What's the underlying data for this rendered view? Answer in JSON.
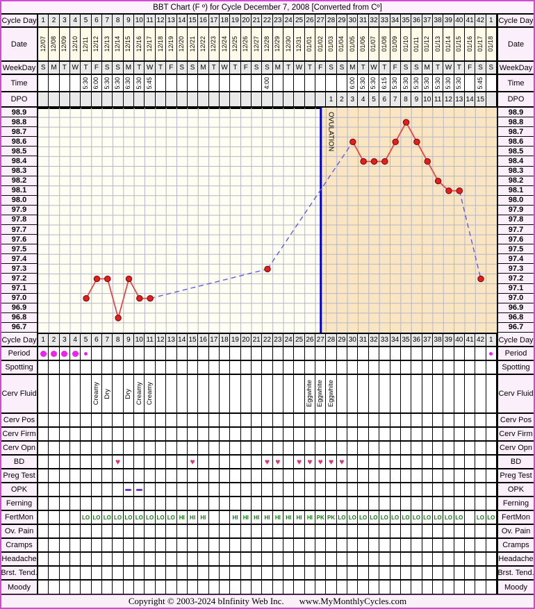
{
  "title": "BBT Chart (F º) for Cycle December 7, 2008 [Converted from Cº]",
  "ovulation_label": "OVULATION",
  "header_rows": {
    "cycle_day": "Cycle Day",
    "date": "Date",
    "weekday": "WeekDay",
    "time": "Time",
    "dpo": "DPO"
  },
  "days": {
    "cycle_days": [
      "1",
      "2",
      "3",
      "4",
      "5",
      "6",
      "7",
      "8",
      "9",
      "10",
      "11",
      "12",
      "13",
      "14",
      "15",
      "16",
      "17",
      "18",
      "19",
      "20",
      "21",
      "22",
      "23",
      "24",
      "25",
      "26",
      "27",
      "28",
      "29",
      "30",
      "31",
      "32",
      "33",
      "34",
      "35",
      "36",
      "37",
      "38",
      "39",
      "40",
      "41",
      "42",
      "1"
    ],
    "dates": [
      "12/07",
      "12/08",
      "12/09",
      "12/10",
      "12/11",
      "12/12",
      "12/13",
      "12/14",
      "12/15",
      "12/16",
      "12/17",
      "12/18",
      "12/19",
      "12/20",
      "12/21",
      "12/22",
      "12/23",
      "12/24",
      "12/25",
      "12/26",
      "12/27",
      "12/28",
      "12/29",
      "12/30",
      "12/31",
      "01/01",
      "01/02",
      "01/03",
      "01/04",
      "01/05",
      "01/06",
      "01/07",
      "01/08",
      "01/09",
      "01/10",
      "01/11",
      "01/12",
      "01/13",
      "01/14",
      "01/15",
      "01/16",
      "01/17",
      "01/18"
    ],
    "weekdays": [
      "S",
      "M",
      "T",
      "W",
      "T",
      "F",
      "S",
      "S",
      "M",
      "T",
      "W",
      "T",
      "F",
      "S",
      "S",
      "M",
      "T",
      "W",
      "T",
      "F",
      "S",
      "S",
      "M",
      "T",
      "W",
      "T",
      "F",
      "S",
      "S",
      "M",
      "T",
      "W",
      "T",
      "F",
      "S",
      "S",
      "M",
      "T",
      "W",
      "T",
      "F",
      "S",
      "S"
    ],
    "times": [
      "",
      "",
      "",
      "",
      "5:30",
      "6:00",
      "5:30",
      "5:30",
      "6:30",
      "5:30",
      "5:45",
      "",
      "",
      "",
      "",
      "",
      "",
      "",
      "",
      "",
      "",
      "4:00",
      "",
      "",
      "",
      "",
      "",
      "",
      "",
      "6:00",
      "5:30",
      "5:30",
      "6:15",
      "5:30",
      "5:30",
      "5:30",
      "5:30",
      "5:30",
      "5:30",
      "5:30",
      "",
      "5:45",
      ""
    ],
    "dpo": [
      "",
      "",
      "",
      "",
      "",
      "",
      "",
      "",
      "",
      "",
      "",
      "",
      "",
      "",
      "",
      "",
      "",
      "",
      "",
      "",
      "",
      "",
      "",
      "",
      "",
      "",
      "",
      "1",
      "2",
      "3",
      "4",
      "5",
      "6",
      "7",
      "8",
      "9",
      "10",
      "11",
      "12",
      "13",
      "14",
      "15",
      ""
    ]
  },
  "chart_data": {
    "type": "line",
    "title": "BBT Chart (F º) for Cycle December 7, 2008 [Converted from Cº]",
    "x_axis_label": "Cycle Day",
    "x_range": [
      1,
      43
    ],
    "y_tick_labels": [
      "98.9",
      "98.8",
      "98.7",
      "98.6",
      "98.5",
      "98.4",
      "98.3",
      "98.2",
      "98.1",
      "98.0",
      "97.9",
      "97.8",
      "97.7",
      "97.6",
      "97.5",
      "97.4",
      "97.3",
      "97.2",
      "97.1",
      "97.0",
      "96.9",
      "96.8",
      "96.7"
    ],
    "ylim": [
      96.65,
      98.95
    ],
    "grid": true,
    "series": [
      {
        "name": "BBT (F)",
        "points": [
          {
            "day": 5,
            "temp": 97.0
          },
          {
            "day": 6,
            "temp": 97.2
          },
          {
            "day": 7,
            "temp": 97.2
          },
          {
            "day": 8,
            "temp": 96.8
          },
          {
            "day": 9,
            "temp": 97.2
          },
          {
            "day": 10,
            "temp": 97.0
          },
          {
            "day": 11,
            "temp": 97.0
          },
          {
            "day": 22,
            "temp": 97.3
          },
          {
            "day": 30,
            "temp": 98.6
          },
          {
            "day": 31,
            "temp": 98.4
          },
          {
            "day": 32,
            "temp": 98.4
          },
          {
            "day": 33,
            "temp": 98.4
          },
          {
            "day": 34,
            "temp": 98.6
          },
          {
            "day": 35,
            "temp": 98.8
          },
          {
            "day": 36,
            "temp": 98.6
          },
          {
            "day": 37,
            "temp": 98.4
          },
          {
            "day": 38,
            "temp": 98.2
          },
          {
            "day": 39,
            "temp": 98.1
          },
          {
            "day": 40,
            "temp": 98.1
          },
          {
            "day": 42,
            "temp": 97.2
          }
        ]
      }
    ],
    "connection_rule": "consecutive days joined with solid red line; gaps joined with dashed blue line",
    "ovulation_day": 27,
    "dpo_start_day": 28,
    "luteal_shading": "from ovulation line (mid day 27) to right edge"
  },
  "symptom_rows": {
    "labels": [
      "Cycle Day",
      "Period",
      "Spotting",
      "Cerv Fluid",
      "Cerv Pos",
      "Cerv Firm",
      "Cerv Opn",
      "BD",
      "Preg Test",
      "OPK",
      "Ferning",
      "FertMon",
      "Ov. Pain",
      "Cramps",
      "Headache",
      "Brst. Tend.",
      "Moody"
    ],
    "period": [
      {
        "day": 1,
        "size": "large"
      },
      {
        "day": 2,
        "size": "large"
      },
      {
        "day": 3,
        "size": "large"
      },
      {
        "day": 4,
        "size": "large"
      },
      {
        "day": 5,
        "size": "small"
      },
      {
        "day": 43,
        "size": "small"
      }
    ],
    "spotting": [],
    "cerv_fluid": [
      {
        "day": 6,
        "value": "Creamy"
      },
      {
        "day": 7,
        "value": "Dry"
      },
      {
        "day": 9,
        "value": "Dry"
      },
      {
        "day": 10,
        "value": "Creamy"
      },
      {
        "day": 11,
        "value": "Creamy"
      },
      {
        "day": 26,
        "value": "Eggwhite"
      },
      {
        "day": 27,
        "value": "Eggwhite"
      },
      {
        "day": 28,
        "value": "Eggwhite"
      }
    ],
    "bd_days": [
      8,
      15,
      22,
      23,
      25,
      26,
      27,
      28,
      29
    ],
    "opk_dash_days": [
      9,
      10
    ],
    "fertmon": [
      "",
      "",
      "",
      "",
      "LO",
      "LO",
      "LO",
      "LO",
      "LO",
      "LO",
      "LO",
      "LO",
      "LO",
      "HI",
      "HI",
      "HI",
      "",
      "",
      "HI",
      "HI",
      "HI",
      "HI",
      "HI",
      "HI",
      "HI",
      "HI",
      "PK",
      "PK",
      "LO",
      "LO",
      "LO",
      "LO",
      "LO",
      "LO",
      "LO",
      "LO",
      "LO",
      "LO",
      "LO",
      "LO",
      "",
      "LO",
      "LO"
    ]
  },
  "colors": {
    "frame_border": "#d24ad2",
    "label_bg": "#fbeffb",
    "header_cell_bg": "#e9e9e9",
    "date_cell_bg": "#fffbe8",
    "follicular_bg": "#fffef2",
    "luteal_bg": "#fae5c2",
    "gridline": "#b6b6c8",
    "temp_line": "#e84040",
    "temp_dot": "#e01f1f",
    "dashed_line": "#5b5be4",
    "ovulation_line": "#0000cc",
    "period_dot": "#ee22ee",
    "heart": "#dd3377",
    "opk_dash": "#6633cc",
    "fertmon_text": "#0c7c0c"
  },
  "footer": {
    "copyright": "Copyright © 2003-2024 bInfinity Web Inc.",
    "site": "www.MyMonthlyCycles.com"
  }
}
